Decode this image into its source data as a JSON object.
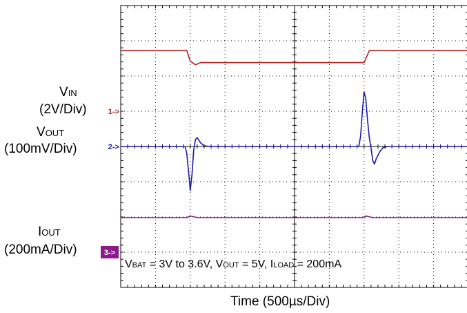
{
  "chart_data": {
    "type": "line",
    "xlabel": "Time (500µs/Div)",
    "x_divisions": 10,
    "y_divisions": 8,
    "grid": true,
    "channels": [
      {
        "id": "1",
        "marker": "1->",
        "name_main": "V",
        "name_sub": "IN",
        "scale": "(2V/Div)",
        "color": "#b22222",
        "baseline_div": 5
      },
      {
        "id": "2",
        "marker": "2->",
        "name_main": "V",
        "name_sub": "OUT",
        "scale": "(100mV/Div)",
        "color": "#1a1aaa",
        "baseline_div": 4
      },
      {
        "id": "3",
        "marker": "3->",
        "name_main": "I",
        "name_sub": "OUT",
        "scale": "(200mA/Div)",
        "color": "#8b1a8b",
        "baseline_div": 1
      }
    ],
    "series": [
      {
        "channel": "1",
        "x": [
          0,
          1.9,
          2.0,
          2.15,
          2.3,
          5.0,
          7.0,
          7.15,
          7.3,
          10.0
        ],
        "y": [
          6.72,
          6.72,
          6.42,
          6.32,
          6.38,
          6.38,
          6.38,
          6.72,
          6.72,
          6.72
        ]
      },
      {
        "channel": "2",
        "x": [
          0,
          1.75,
          1.85,
          1.9,
          1.95,
          2.0,
          2.05,
          2.1,
          2.15,
          2.2,
          2.3,
          2.4,
          2.6,
          6.85,
          6.9,
          6.95,
          7.0,
          7.05,
          7.1,
          7.15,
          7.2,
          7.25,
          7.3,
          7.35,
          7.45,
          7.55,
          7.7,
          10.0
        ],
        "y": [
          4.0,
          4.0,
          4.0,
          3.8,
          3.3,
          2.75,
          3.2,
          3.9,
          4.2,
          4.25,
          4.1,
          4.02,
          4.0,
          4.0,
          4.3,
          5.0,
          5.55,
          5.35,
          4.75,
          4.25,
          3.95,
          3.6,
          3.5,
          3.65,
          3.85,
          3.97,
          4.0,
          4.0
        ]
      },
      {
        "channel": "3",
        "x": [
          0,
          1.9,
          2.0,
          2.2,
          7.0,
          7.05,
          7.25,
          10.0
        ],
        "y": [
          1.98,
          1.98,
          2.03,
          1.98,
          1.98,
          2.03,
          1.98,
          1.98
        ]
      }
    ],
    "caption_parts": [
      "V",
      "BAT",
      " = 3V to 3.6V, V",
      "OUT",
      " = 5V, I",
      "LOAD",
      " = 200mA"
    ]
  }
}
